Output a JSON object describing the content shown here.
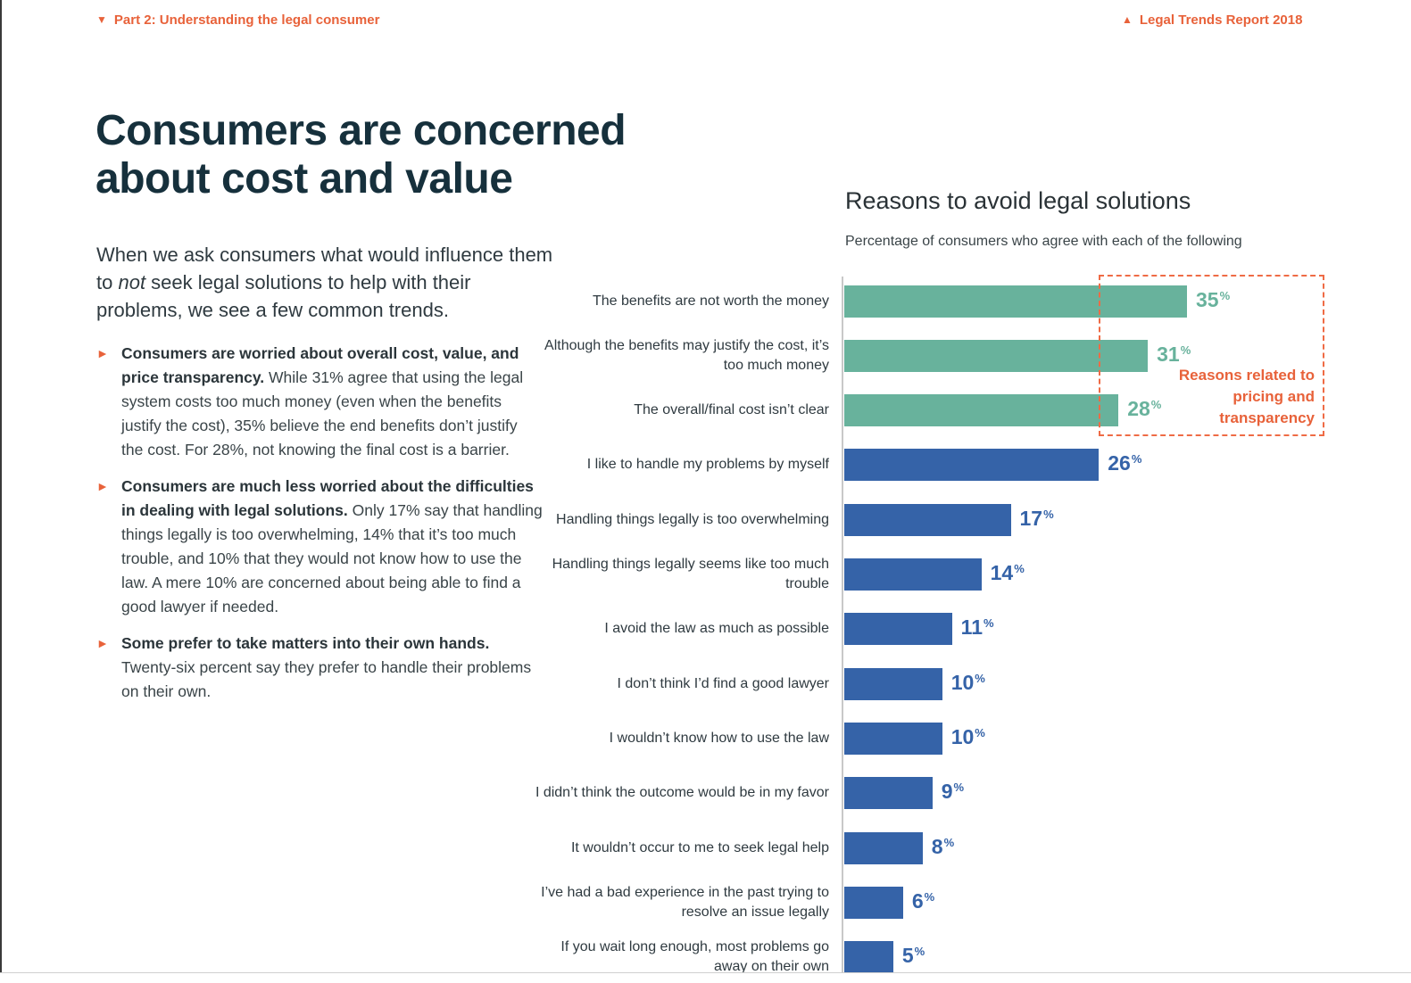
{
  "header": {
    "section": "Part 2: Understanding the legal consumer",
    "report": "Legal Trends Report 2018"
  },
  "title": "Consumers are concerned about cost and value",
  "intro": {
    "before": "When we ask consumers what would influence them to ",
    "emph": "not",
    "after": " seek legal solutions to help with their problems, we see a few common trends."
  },
  "bullets": [
    {
      "bold": "Consumers are worried about overall cost, value, and price transparency.",
      "text": " While 31% agree that using the legal system costs too much money (even when the benefits justify the cost), 35% believe the end benefits don’t justify the cost. For 28%, not knowing the final cost is a barrier."
    },
    {
      "bold": "Consumers are much less worried about the difficulties in dealing with legal solutions.",
      "text": " Only 17% say that handling things legally is too overwhelming, 14% that it’s too much trouble, and 10% that they would not know how to use the law. A mere 10% are concerned about being able to find a good lawyer if needed."
    },
    {
      "bold": "Some prefer to take matters into their own hands.",
      "text": " Twenty-six percent say they prefer to handle their problems on their own."
    }
  ],
  "chart_data": {
    "type": "bar",
    "orientation": "horizontal",
    "title": "Reasons to avoid legal solutions",
    "subtitle": "Percentage of consumers who agree with each of the following",
    "unit": "%",
    "xlim": [
      0,
      35
    ],
    "categories": [
      "The benefits are not worth the money",
      "Although the benefits may justify the cost, it’s too much money",
      "The overall/final cost isn’t clear",
      "I like to handle my problems by myself",
      "Handling things legally is too overwhelming",
      "Handling things legally seems like too much trouble",
      "I avoid the law as much as possible",
      "I don’t think I’d find a good lawyer",
      "I wouldn’t know how to use the law",
      "I didn’t think the outcome would be in my favor",
      "It wouldn’t occur to me to seek legal help",
      "I’ve had a bad experience in the past trying to resolve an issue legally",
      "If you wait long enough, most problems go away on their own"
    ],
    "values": [
      35,
      31,
      28,
      26,
      17,
      14,
      11,
      10,
      10,
      9,
      8,
      6,
      5
    ],
    "highlighted": [
      true,
      true,
      true,
      false,
      false,
      false,
      false,
      false,
      false,
      false,
      false,
      false,
      false
    ],
    "annotation": "Reasons related to pricing and transparency",
    "colors": {
      "highlight": "#68b29c",
      "default": "#3563a8",
      "annotation": "#e8623a"
    }
  }
}
